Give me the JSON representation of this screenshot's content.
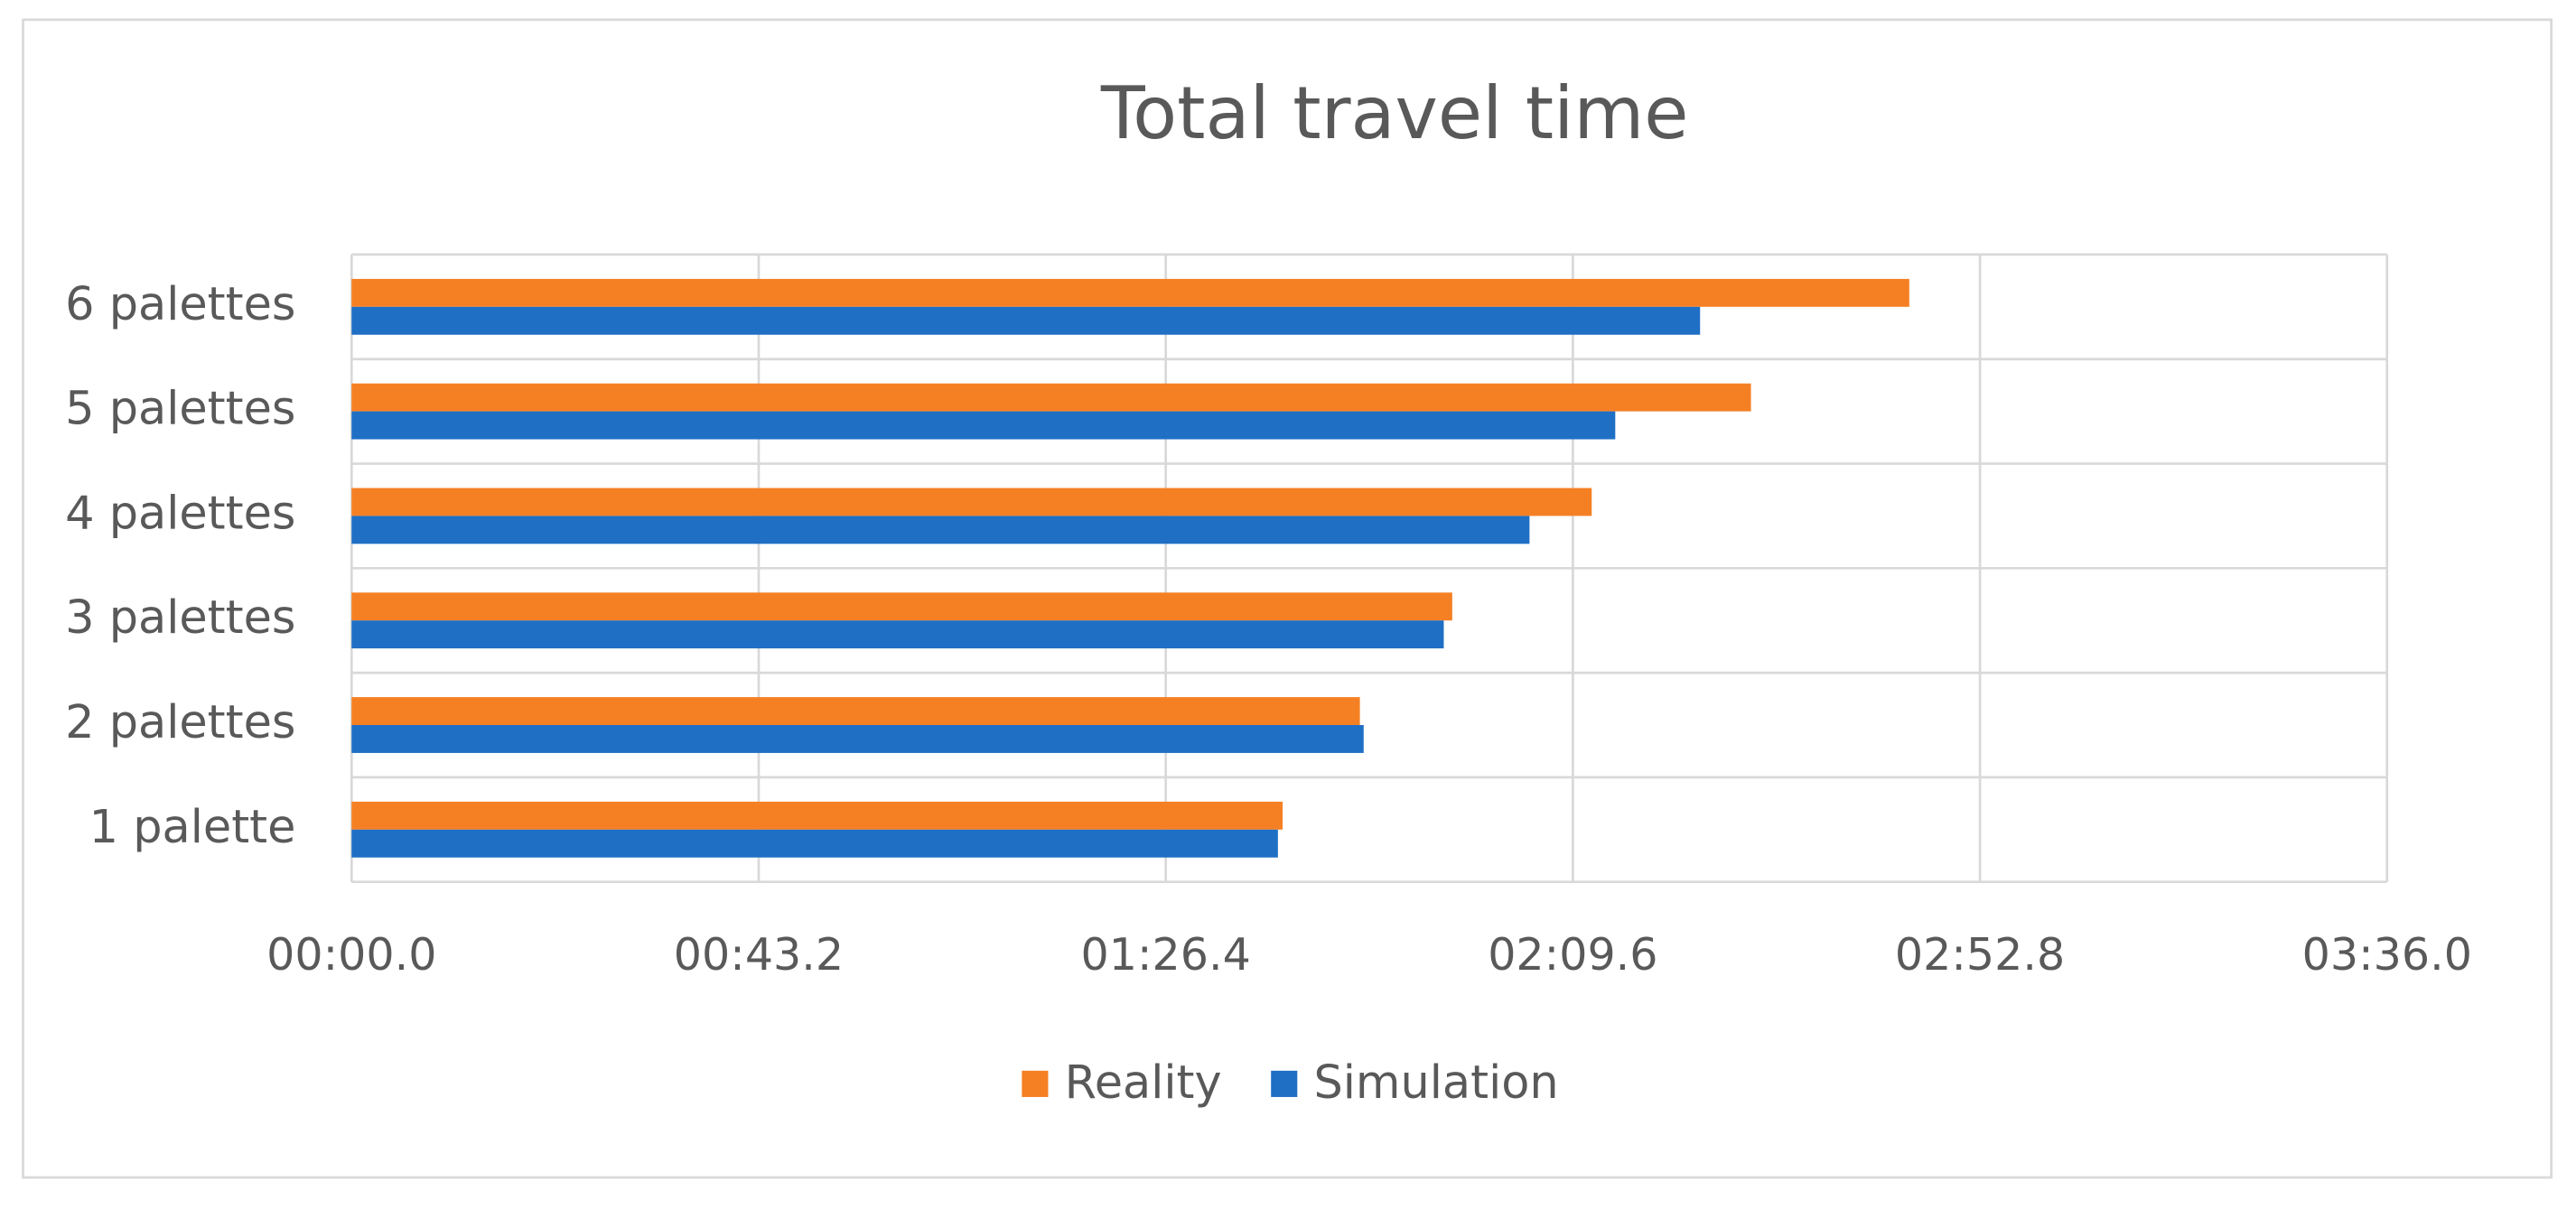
{
  "chart_data": {
    "type": "bar",
    "orientation": "horizontal",
    "title": "Total travel time",
    "categories": [
      "1 palette",
      "2 palettes",
      "3 palettes",
      "4 palettes",
      "5 palettes",
      "6 palettes"
    ],
    "series": [
      {
        "name": "Reality",
        "color": "#f58024",
        "values": [
          98.8,
          107.0,
          116.8,
          131.6,
          148.5,
          165.3
        ]
      },
      {
        "name": "Simulation",
        "color": "#1f6fc5",
        "values": [
          98.3,
          107.4,
          115.9,
          125.0,
          134.1,
          143.1
        ]
      }
    ],
    "xlim": [
      0,
      216
    ],
    "xticks": [
      {
        "value": 0,
        "label": "00:00.0"
      },
      {
        "value": 43.2,
        "label": "00:43.2"
      },
      {
        "value": 86.4,
        "label": "01:26.4"
      },
      {
        "value": 129.6,
        "label": "02:09.6"
      },
      {
        "value": 172.8,
        "label": "02:52.8"
      },
      {
        "value": 216,
        "label": "03:36.0"
      }
    ],
    "grid": true,
    "legend": "bottom"
  }
}
